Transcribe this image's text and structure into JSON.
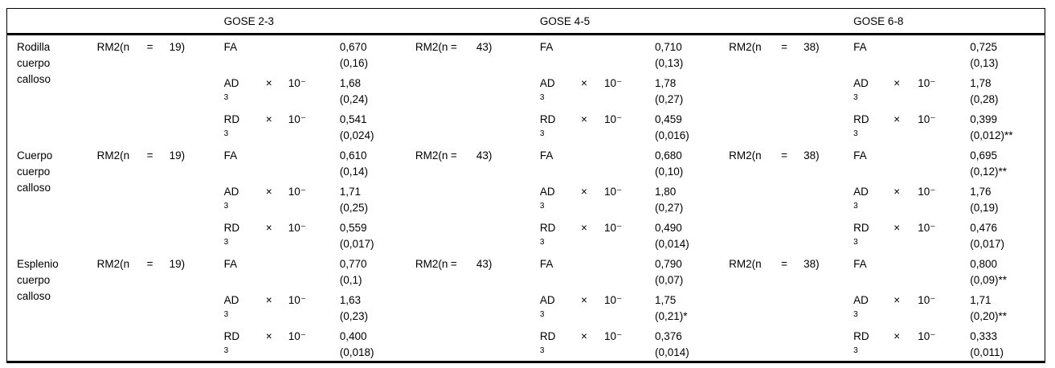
{
  "page": {
    "background": "#ffffff",
    "text_color": "#000000",
    "border_color": "#000000"
  },
  "table": {
    "headers": [
      {
        "label": "GOSE 2-3"
      },
      {
        "label": "GOSE 4-5"
      },
      {
        "label": "GOSE 6-8"
      }
    ],
    "symbols": {
      "times": "×",
      "power_base": "10⁻",
      "power_exp": "3"
    },
    "rows": [
      {
        "region": "Rodilla cuerpo calloso",
        "groups": [
          {
            "rm_label": "RM2(n",
            "eq": "=",
            "n": "19)",
            "metrics": [
              {
                "name": "FA",
                "has_power": false,
                "value": "0,670",
                "sd": "(0,16)"
              },
              {
                "name": "AD",
                "has_power": true,
                "value": "1,68",
                "sd": "(0,24)"
              },
              {
                "name": "RD",
                "has_power": true,
                "value": "0,541",
                "sd": "(0,024)"
              }
            ]
          },
          {
            "rm_label": "RM2(n",
            "eq": "=",
            "n": "43)",
            "metrics": [
              {
                "name": "FA",
                "has_power": false,
                "value": "0,710",
                "sd": "(0,13)"
              },
              {
                "name": "AD",
                "has_power": true,
                "value": "1,78",
                "sd": "(0,27)"
              },
              {
                "name": "RD",
                "has_power": true,
                "value": "0,459",
                "sd": "(0,016)"
              }
            ]
          },
          {
            "rm_label": "RM2(n",
            "eq": "=",
            "n": "38)",
            "metrics": [
              {
                "name": "FA",
                "has_power": false,
                "value": "0,725",
                "sd": "(0,13)"
              },
              {
                "name": "AD",
                "has_power": true,
                "value": "1,78",
                "sd": "(0,28)"
              },
              {
                "name": "RD",
                "has_power": true,
                "value": "0,399",
                "sd": "(0,012)**"
              }
            ]
          }
        ]
      },
      {
        "region": "Cuerpo cuerpo calloso",
        "groups": [
          {
            "rm_label": "RM2(n",
            "eq": "=",
            "n": "19)",
            "metrics": [
              {
                "name": "FA",
                "has_power": false,
                "value": "0,610",
                "sd": "(0,14)"
              },
              {
                "name": "AD",
                "has_power": true,
                "value": "1,71",
                "sd": "(0,25)"
              },
              {
                "name": "RD",
                "has_power": true,
                "value": "0,559",
                "sd": "(0,017)"
              }
            ]
          },
          {
            "rm_label": "RM2(n",
            "eq": "=",
            "n": "43)",
            "metrics": [
              {
                "name": "FA",
                "has_power": false,
                "value": "0,680",
                "sd": "(0,10)"
              },
              {
                "name": "AD",
                "has_power": true,
                "value": "1,80",
                "sd": "(0,27)"
              },
              {
                "name": "RD",
                "has_power": true,
                "value": "0,490",
                "sd": "(0,014)"
              }
            ]
          },
          {
            "rm_label": "RM2(n",
            "eq": "=",
            "n": "38)",
            "metrics": [
              {
                "name": "FA",
                "has_power": false,
                "value": "0,695",
                "sd": "(0,12)**"
              },
              {
                "name": "AD",
                "has_power": true,
                "value": "1,76",
                "sd": "(0,19)"
              },
              {
                "name": "RD",
                "has_power": true,
                "value": "0,476",
                "sd": "(0,017)"
              }
            ]
          }
        ]
      },
      {
        "region": "Esplenio cuerpo calloso",
        "groups": [
          {
            "rm_label": "RM2(n",
            "eq": "=",
            "n": "19)",
            "metrics": [
              {
                "name": "FA",
                "has_power": false,
                "value": "0,770",
                "sd": "(0,1)"
              },
              {
                "name": "AD",
                "has_power": true,
                "value": "1,63",
                "sd": "(0,23)"
              },
              {
                "name": "RD",
                "has_power": true,
                "value": "0,400",
                "sd": "(0,018)"
              }
            ]
          },
          {
            "rm_label": "RM2(n",
            "eq": "=",
            "n": "43)",
            "metrics": [
              {
                "name": "FA",
                "has_power": false,
                "value": "0,790",
                "sd": "(0,07)"
              },
              {
                "name": "AD",
                "has_power": true,
                "value": "1,75",
                "sd": "(0,21)*"
              },
              {
                "name": "RD",
                "has_power": true,
                "value": "0,376",
                "sd": "(0,014)"
              }
            ]
          },
          {
            "rm_label": "RM2(n",
            "eq": "=",
            "n": "38)",
            "metrics": [
              {
                "name": "FA",
                "has_power": false,
                "value": "0,800",
                "sd": "(0,09)**"
              },
              {
                "name": "AD",
                "has_power": true,
                "value": "1,71",
                "sd": "(0,20)**"
              },
              {
                "name": "RD",
                "has_power": true,
                "value": "0,333",
                "sd": "(0,011)"
              }
            ]
          }
        ]
      }
    ]
  }
}
